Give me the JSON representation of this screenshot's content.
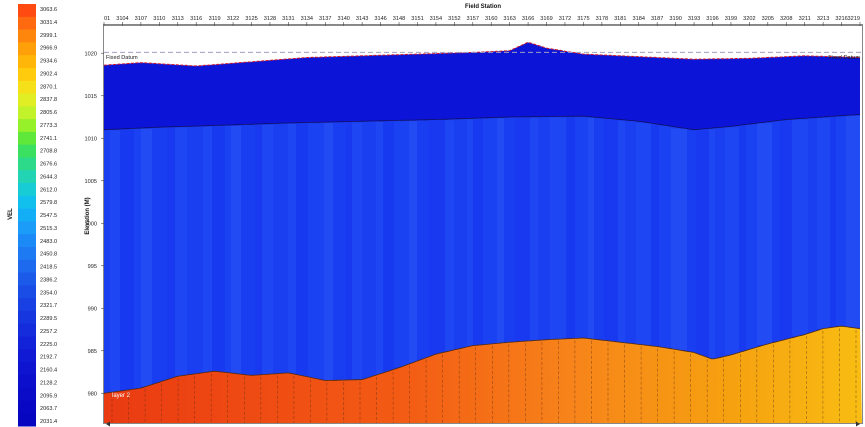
{
  "chart_data": {
    "type": "heatmap",
    "title": "Field Station",
    "xlabel": "",
    "ylabel": "Elevation (M)",
    "x_tick_labels": [
      "01",
      "3104",
      "3107",
      "3110",
      "3113",
      "3116",
      "3119",
      "3122",
      "3125",
      "3128",
      "3131",
      "3134",
      "3137",
      "3140",
      "3143",
      "3146",
      "3148",
      "3151",
      "3154",
      "3152",
      "3157",
      "3160",
      "3163",
      "3166",
      "3169",
      "3172",
      "3175",
      "3178",
      "3181",
      "3184",
      "3187",
      "3190",
      "3193",
      "3196",
      "3199",
      "3202",
      "3205",
      "3208",
      "3211",
      "3213",
      "3216",
      "3219"
    ],
    "y_ticks": [
      980,
      985,
      990,
      995,
      1000,
      1005,
      1010,
      1015,
      1020
    ],
    "ylim": [
      976.5,
      1022.5
    ],
    "colorbar": {
      "label": "VEL",
      "labels": [
        "3063.6",
        "3031.4",
        "2999.1",
        "2966.9",
        "2934.6",
        "2902.4",
        "2870.1",
        "2837.8",
        "2805.6",
        "2773.3",
        "2741.1",
        "2708.8",
        "2676.6",
        "2644.3",
        "2612.0",
        "2579.8",
        "2547.5",
        "2515.3",
        "2483.0",
        "2450.8",
        "2418.5",
        "2386.2",
        "2354.0",
        "2321.7",
        "2289.5",
        "2257.2",
        "2225.0",
        "2192.7",
        "2160.4",
        "2128.2",
        "2095.9",
        "2063.7",
        "2031.4"
      ],
      "colors": [
        "#ff4a12",
        "#ff6a10",
        "#ff860c",
        "#ffa00a",
        "#ffb608",
        "#ffcb0c",
        "#f6e01a",
        "#e2ee24",
        "#c2f22a",
        "#96f02a",
        "#5fe83a",
        "#3ce060",
        "#2cda8a",
        "#22d4b4",
        "#18ccd6",
        "#12c0ee",
        "#14aef6",
        "#1a9cf8",
        "#1c8af6",
        "#1e7af2",
        "#1e6aee",
        "#1c5aea",
        "#1a4ce6",
        "#1840e2",
        "#1636e0",
        "#142cdc",
        "#1222d8",
        "#101ad4",
        "#0e14d0",
        "#0c10cc",
        "#0a0cc8",
        "#0808c4",
        "#0606c0"
      ]
    },
    "annotations": {
      "datum_left": "Fixed Datum",
      "datum_right": "Fixed Datum",
      "layer_label": "layer 2"
    },
    "surface_elevation": {
      "x_index": [
        0,
        2,
        5,
        8,
        11,
        14,
        17,
        20,
        22,
        23,
        24,
        26,
        29,
        32,
        35,
        38,
        41
      ],
      "y": [
        1018.6,
        1018.9,
        1018.5,
        1019.0,
        1019.5,
        1019.7,
        1019.9,
        1020.1,
        1020.3,
        1021.3,
        1020.6,
        1019.9,
        1019.6,
        1019.3,
        1019.4,
        1019.7,
        1019.5
      ]
    },
    "layer1_base": {
      "x_index": [
        0,
        3,
        6,
        10,
        14,
        18,
        22,
        26,
        29,
        32,
        34,
        37,
        41
      ],
      "y": [
        1011.0,
        1011.3,
        1011.5,
        1011.8,
        1012.0,
        1012.2,
        1012.5,
        1012.6,
        1012.0,
        1011.0,
        1011.4,
        1012.2,
        1012.8
      ]
    },
    "layer2_top": {
      "x_index": [
        0,
        2,
        4,
        6,
        8,
        10,
        12,
        14,
        16,
        18,
        20,
        22,
        24,
        26,
        28,
        30,
        32,
        33,
        34,
        36,
        38,
        39,
        40,
        41
      ],
      "y": [
        980.0,
        980.6,
        982.0,
        982.6,
        982.1,
        982.4,
        981.5,
        981.6,
        983.0,
        984.6,
        985.6,
        986.0,
        986.3,
        986.5,
        986.0,
        985.5,
        984.8,
        984.0,
        984.5,
        985.8,
        986.9,
        987.6,
        987.9,
        987.6
      ]
    },
    "grid": false,
    "legend": "colorbar-left"
  }
}
